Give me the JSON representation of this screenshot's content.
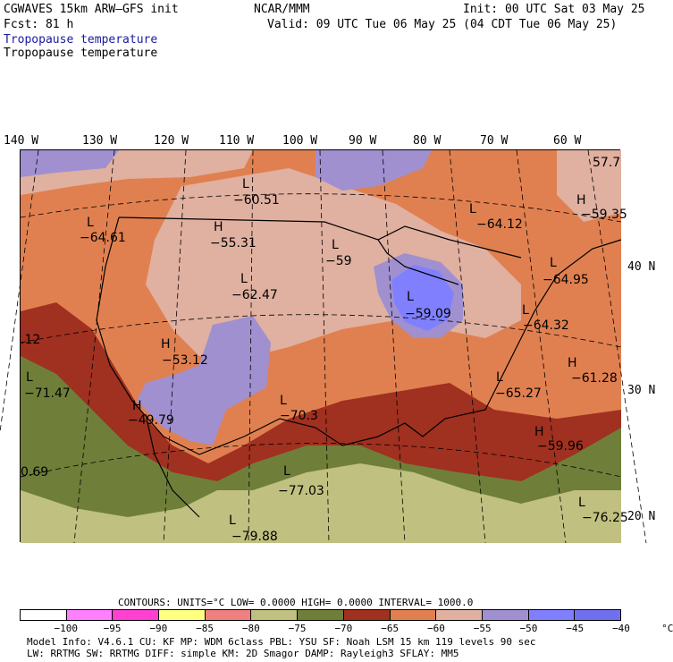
{
  "header": {
    "model": "CGWAVES 15km ARW–GFS init",
    "org": "NCAR/MMM",
    "init": "Init: 00 UTC Sat 03 May 25",
    "fcst": "Fcst:   81 h",
    "valid": "Valid: 09 UTC Tue 06 May 25 (04 CDT Tue 06 May 25)",
    "field_blue": "Tropopause temperature",
    "field_black": "Tropopause temperature"
  },
  "longitude_labels": [
    "140 W",
    "130 W",
    "120 W",
    "110 W",
    "100 W",
    "90 W",
    "80 W",
    "70 W",
    "60 W"
  ],
  "latitude_labels": [
    "40 N",
    "30 N",
    "20 N"
  ],
  "map_labels": [
    {
      "type": "L",
      "value": "−60.51"
    },
    {
      "type": "L",
      "value": "−64.12"
    },
    {
      "type": "H",
      "value": "−59.35"
    },
    {
      "type": "L",
      "value": "−64.61"
    },
    {
      "type": "H",
      "value": "−55.31"
    },
    {
      "type": "L",
      "value": "−59"
    },
    {
      "type": "L",
      "value": "−64.95"
    },
    {
      "type": "L",
      "value": "−62.47"
    },
    {
      "type": "L",
      "value": "−59.09"
    },
    {
      "type": "L",
      "value": "−64.32"
    },
    {
      "type": "H",
      "value": "−53.12"
    },
    {
      "type": "H",
      "value": "−61.28"
    },
    {
      "type": "L",
      "value": "−71.47"
    },
    {
      "type": "L",
      "value": "−65.27"
    },
    {
      "type": "H",
      "value": "−49.79"
    },
    {
      "type": "L",
      "value": "−70.3"
    },
    {
      "type": "H",
      "value": "−59.96"
    },
    {
      "type": "L",
      "value": "−77.03"
    },
    {
      "type": "L",
      "value": "−79.88"
    },
    {
      "type": "L",
      "value": "−76.25"
    },
    {
      "type": "",
      "value": ".12"
    },
    {
      "type": "",
      "value": "0.69"
    },
    {
      "type": "",
      "value": "57.7"
    }
  ],
  "contours_line": {
    "contours": "CONTOURS:  UNITS=°C  LOW=  0.0000      HIGH=  0.0000      INTERVAL=   1000.0"
  },
  "colorbar": {
    "colors": [
      "#ffffff",
      "#ff80ff",
      "#ff40d0",
      "#ffff80",
      "#f08080",
      "#c0c080",
      "#6f7f3a",
      "#a03020",
      "#e08050",
      "#e0b0a0",
      "#a090d0",
      "#8080ff",
      "#7070ee"
    ],
    "ticks": [
      "−100",
      "−95",
      "−90",
      "−85",
      "−80",
      "−75",
      "−70",
      "−65",
      "−60",
      "−55",
      "−50",
      "−45",
      "−40",
      "°C"
    ]
  },
  "footer": {
    "line1": "Model Info: V4.6.1     CU: KF         MP: WDM 6class   PBL: YSU        SF: Noah LSM      15 km   119 levels   90 sec",
    "line2": "             LW: RRTMG    SW: RRTMG   DIFF: simple KM: 2D Smagor DAMP: Rayleigh3  SFLAY: MM5"
  }
}
